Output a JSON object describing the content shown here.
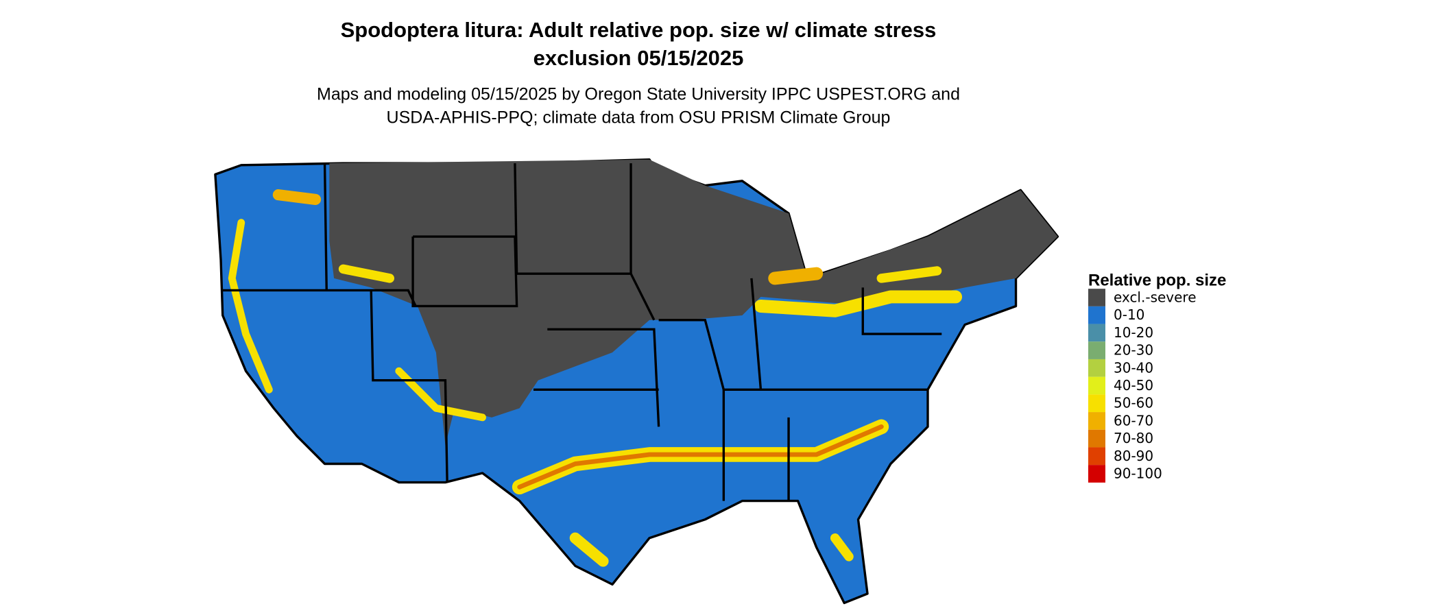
{
  "title": [
    "Spodoptera litura: Adult relative pop. size w/ climate stress",
    "exclusion 05/15/2025"
  ],
  "subtitle": [
    "Maps and modeling 05/15/2025 by Oregon State University IPPC USPEST.ORG and",
    "USDA-APHIS-PPQ; climate data from OSU PRISM Climate Group"
  ],
  "legend": {
    "title": "Relative pop. size",
    "items": [
      {
        "label": "excl.-severe",
        "color": "#4a4a4a"
      },
      {
        "label": "0-10",
        "color": "#1f74cf"
      },
      {
        "label": "10-20",
        "color": "#4a8fa8"
      },
      {
        "label": "20-30",
        "color": "#7aad70"
      },
      {
        "label": "30-40",
        "color": "#b3d040"
      },
      {
        "label": "40-50",
        "color": "#e2ef1a"
      },
      {
        "label": "50-60",
        "color": "#f7e000"
      },
      {
        "label": "60-70",
        "color": "#f0b000"
      },
      {
        "label": "70-80",
        "color": "#e07800"
      },
      {
        "label": "80-90",
        "color": "#e04000"
      },
      {
        "label": "90-100",
        "color": "#d40000"
      }
    ]
  }
}
